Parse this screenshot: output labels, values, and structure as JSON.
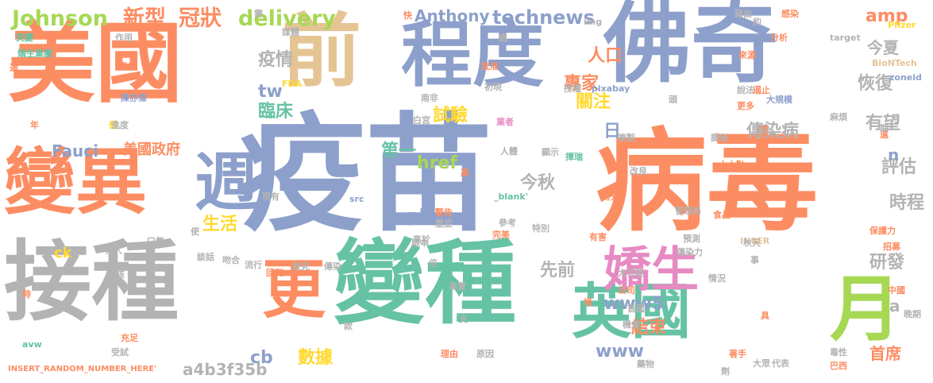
{
  "words": [
    {
      "text": "疫苗",
      "color": "#8da0cb"
    },
    {
      "text": "病毒",
      "color": "#fc8d62"
    },
    {
      "text": "接種",
      "color": "#b3b3b3"
    },
    {
      "text": "變種",
      "color": "#66c2a5"
    },
    {
      "text": "美國",
      "color": "#fc8d62"
    },
    {
      "text": "佛奇",
      "color": "#8da0cb"
    },
    {
      "text": "前",
      "color": "#e5c494"
    },
    {
      "text": "程度",
      "color": "#8da0cb"
    },
    {
      "text": "變異",
      "color": "#fc8d62"
    },
    {
      "text": "英國",
      "color": "#66c2a5"
    },
    {
      "text": "月",
      "color": "#a6d854"
    },
    {
      "text": "週",
      "color": "#8da0cb"
    },
    {
      "text": "更",
      "color": "#fc8d62"
    },
    {
      "text": "嬌生",
      "color": "#e78ac3"
    },
    {
      "text": "Johnson",
      "color": "#a6d854"
    },
    {
      "text": "新型",
      "color": "#fc8d62"
    },
    {
      "text": "冠狀",
      "color": "#fc8d62"
    },
    {
      "text": "delivery",
      "color": "#a6d854"
    },
    {
      "text": "Anthony",
      "color": "#8da0cb"
    },
    {
      "text": "technews",
      "color": "#8da0cb"
    },
    {
      "text": "amp",
      "color": "#fc8d62"
    },
    {
      "text": "今夏",
      "color": "#b3b3b3"
    },
    {
      "text": "恢復",
      "color": "#b3b3b3"
    },
    {
      "text": "人口",
      "color": "#fc8d62"
    },
    {
      "text": "專家",
      "color": "#fc8d62"
    },
    {
      "text": "疫情",
      "color": "#b3b3b3"
    },
    {
      "text": "關注",
      "color": "#ffd92f"
    },
    {
      "text": "tw",
      "color": "#8da0cb"
    },
    {
      "text": "臨床",
      "color": "#66c2a5"
    },
    {
      "text": "試驗",
      "color": "#ffd92f"
    },
    {
      "text": "有望",
      "color": "#b3b3b3"
    },
    {
      "text": "傳染病",
      "color": "#b3b3b3"
    },
    {
      "text": "日",
      "color": "#8da0cb"
    },
    {
      "text": "Fauci",
      "color": "#8da0cb"
    },
    {
      "text": "美國政府",
      "color": "#fc8d62"
    },
    {
      "text": "第一",
      "color": "#66c2a5"
    },
    {
      "text": "href",
      "color": "#a6d854"
    },
    {
      "text": "今秋",
      "color": "#b3b3b3"
    },
    {
      "text": "評估",
      "color": "#b3b3b3"
    },
    {
      "text": "時程",
      "color": "#b3b3b3"
    },
    {
      "text": "php",
      "color": "#8da0cb"
    },
    {
      "text": "生活",
      "color": "#ffd92f"
    },
    {
      "text": "先前",
      "color": "#b3b3b3"
    },
    {
      "text": "www5",
      "color": "#8da0cb"
    },
    {
      "text": "結束",
      "color": "#fc8d62"
    },
    {
      "text": "研發",
      "color": "#b3b3b3"
    },
    {
      "text": "www",
      "color": "#8da0cb"
    },
    {
      "text": "數據",
      "color": "#ffd92f"
    },
    {
      "text": "cb",
      "color": "#8da0cb"
    },
    {
      "text": "a4b3f35b",
      "color": "#b3b3b3"
    },
    {
      "text": "首席",
      "color": "#fc8d62"
    },
    {
      "text": "n",
      "color": "#8da0cb"
    },
    {
      "text": "a",
      "color": "#b3b3b3"
    },
    {
      "text": "ck",
      "color": "#ffd92f"
    },
    {
      "text": "INSERT_RANDOM_NUMBER_HERE'",
      "color": "#fc8d62"
    },
    {
      "text": "突變",
      "color": "#66c2a5"
    },
    {
      "text": "作用",
      "color": "#b3b3b3"
    },
    {
      "text": "媒體",
      "color": "#b3b3b3"
    },
    {
      "text": "快",
      "color": "#fc8d62"
    },
    {
      "text": "img",
      "color": "#b3b3b3"
    },
    {
      "text": "藉由",
      "color": "#b3b3b3"
    },
    {
      "text": "約",
      "color": "#b3b3b3"
    },
    {
      "text": "感染",
      "color": "#fc8d62"
    },
    {
      "text": "target",
      "color": "#b3b3b3"
    },
    {
      "text": "Pfizer",
      "color": "#ffd92f"
    },
    {
      "text": "BioNTech",
      "color": "#e5c494"
    },
    {
      "text": "zoneid",
      "color": "#8da0cb"
    },
    {
      "text": "分析",
      "color": "#fc8d62"
    },
    {
      "text": "來源",
      "color": "#fc8d62"
    },
    {
      "text": "處",
      "color": "#b3b3b3"
    },
    {
      "text": "嬌生集團",
      "color": "#66c2a5"
    },
    {
      "text": "指出",
      "color": "#fc8d62"
    },
    {
      "text": "陳亦偉",
      "color": "#8da0cb"
    },
    {
      "text": "FDA",
      "color": "#ffd92f"
    },
    {
      "text": "批准",
      "color": "#fc8d62"
    },
    {
      "text": "初現",
      "color": "#b3b3b3"
    },
    {
      "text": "授權",
      "color": "#b3b3b3"
    },
    {
      "text": "pixabay",
      "color": "#8da0cb"
    },
    {
      "text": "南非",
      "color": "#b3b3b3"
    },
    {
      "text": "頭",
      "color": "#b3b3b3"
    },
    {
      "text": "說法",
      "color": "#b3b3b3"
    },
    {
      "text": "更多",
      "color": "#fc8d62"
    },
    {
      "text": "遏止",
      "color": "#fc8d62"
    },
    {
      "text": "大規模",
      "color": "#8da0cb"
    },
    {
      "text": "麻煩",
      "color": "#b3b3b3"
    },
    {
      "text": "遺",
      "color": "#fc8d62"
    },
    {
      "text": "年",
      "color": "#fc8d62"
    },
    {
      "text": "感",
      "color": "#ffd92f"
    },
    {
      "text": "進度",
      "color": "#b3b3b3"
    },
    {
      "text": "白宮",
      "color": "#b3b3b3"
    },
    {
      "text": "業者",
      "color": "#e78ac3"
    },
    {
      "text": "複製",
      "color": "#b3b3b3"
    },
    {
      "text": "譯者",
      "color": "#b3b3b3"
    },
    {
      "text": "期",
      "color": "#b3b3b3"
    },
    {
      "text": "人體",
      "color": "#b3b3b3"
    },
    {
      "text": "顯示",
      "color": "#b3b3b3"
    },
    {
      "text": "揮瑞",
      "color": "#66c2a5"
    },
    {
      "text": "高",
      "color": "#fc8d62"
    },
    {
      "text": "改良",
      "color": "#b3b3b3"
    },
    {
      "text": "大大點",
      "color": "#fc8d62"
    },
    {
      "text": "時光",
      "color": "#fc8d62"
    },
    {
      "text": "現有",
      "color": "#b3b3b3"
    },
    {
      "text": "src",
      "color": "#8da0cb"
    },
    {
      "text": "_blank'",
      "color": "#66c2a5"
    },
    {
      "text": "警告",
      "color": "#fc8d62"
    },
    {
      "text": "重症",
      "color": "#b3b3b3"
    },
    {
      "text": "管理局",
      "color": "#b3b3b3"
    },
    {
      "text": "食品",
      "color": "#fc8d62"
    },
    {
      "text": "INSER",
      "color": "#e5c494"
    },
    {
      "text": "事",
      "color": "#b3b3b3"
    },
    {
      "text": "口氣",
      "color": "#b3b3b3"
    },
    {
      "text": "使",
      "color": "#b3b3b3"
    },
    {
      "text": "高於",
      "color": "#b3b3b3"
    },
    {
      "text": "版本",
      "color": "#b3b3b3"
    },
    {
      "text": "參考",
      "color": "#b3b3b3"
    },
    {
      "text": "完美",
      "color": "#fc8d62"
    },
    {
      "text": "特別",
      "color": "#b3b3b3"
    },
    {
      "text": "有害",
      "color": "#fc8d62"
    },
    {
      "text": "預測",
      "color": "#b3b3b3"
    },
    {
      "text": "保護力",
      "color": "#fc8d62"
    },
    {
      "text": "秋天",
      "color": "#b3b3b3"
    },
    {
      "text": "招募",
      "color": "#fc8d62"
    },
    {
      "text": "傳入",
      "color": "#b3b3b3"
    },
    {
      "text": "談話",
      "color": "#b3b3b3"
    },
    {
      "text": "吻合",
      "color": "#b3b3b3"
    },
    {
      "text": "流行",
      "color": "#b3b3b3"
    },
    {
      "text": "致死",
      "color": "#b3b3b3"
    },
    {
      "text": "傳染力",
      "color": "#b3b3b3"
    },
    {
      "text": "回到",
      "color": "#fc8d62"
    },
    {
      "text": "傳染",
      "color": "#b3b3b3"
    },
    {
      "text": "倍",
      "color": "#b3b3b3"
    },
    {
      "text": "大可能",
      "color": "#b3b3b3"
    },
    {
      "text": "情況",
      "color": "#b3b3b3"
    },
    {
      "text": "審核",
      "color": "#b3b3b3"
    },
    {
      "text": "公司",
      "color": "#fc8d62"
    },
    {
      "text": "中國",
      "color": "#fc8d62"
    },
    {
      "text": "時",
      "color": "#fc8d62"
    },
    {
      "text": "首國",
      "color": "#b3b3b3"
    },
    {
      "text": "事實",
      "color": "#b3b3b3"
    },
    {
      "text": "境",
      "color": "#fc8d62"
    },
    {
      "text": "晚期",
      "color": "#b3b3b3"
    },
    {
      "text": "機會",
      "color": "#b3b3b3"
    },
    {
      "text": "具",
      "color": "#fc8d62"
    },
    {
      "text": "avw",
      "color": "#66c2a5"
    },
    {
      "text": "充足",
      "color": "#fc8d62"
    },
    {
      "text": "受試",
      "color": "#b3b3b3"
    },
    {
      "text": "款",
      "color": "#b3b3b3"
    },
    {
      "text": "支",
      "color": "#b3b3b3"
    },
    {
      "text": "理由",
      "color": "#fc8d62"
    },
    {
      "text": "原因",
      "color": "#b3b3b3"
    },
    {
      "text": "藥物",
      "color": "#b3b3b3"
    },
    {
      "text": "毒性",
      "color": "#b3b3b3"
    },
    {
      "text": "代表",
      "color": "#b3b3b3"
    },
    {
      "text": "大眾",
      "color": "#b3b3b3"
    },
    {
      "text": "巴西",
      "color": "#fc8d62"
    },
    {
      "text": "著手",
      "color": "#fc8d62"
    },
    {
      "text": "劑",
      "color": "#b3b3b3"
    },
    {
      "text": "需",
      "color": "#b3b3b3"
    },
    {
      "text": "適",
      "color": "#fc8d62"
    }
  ]
}
